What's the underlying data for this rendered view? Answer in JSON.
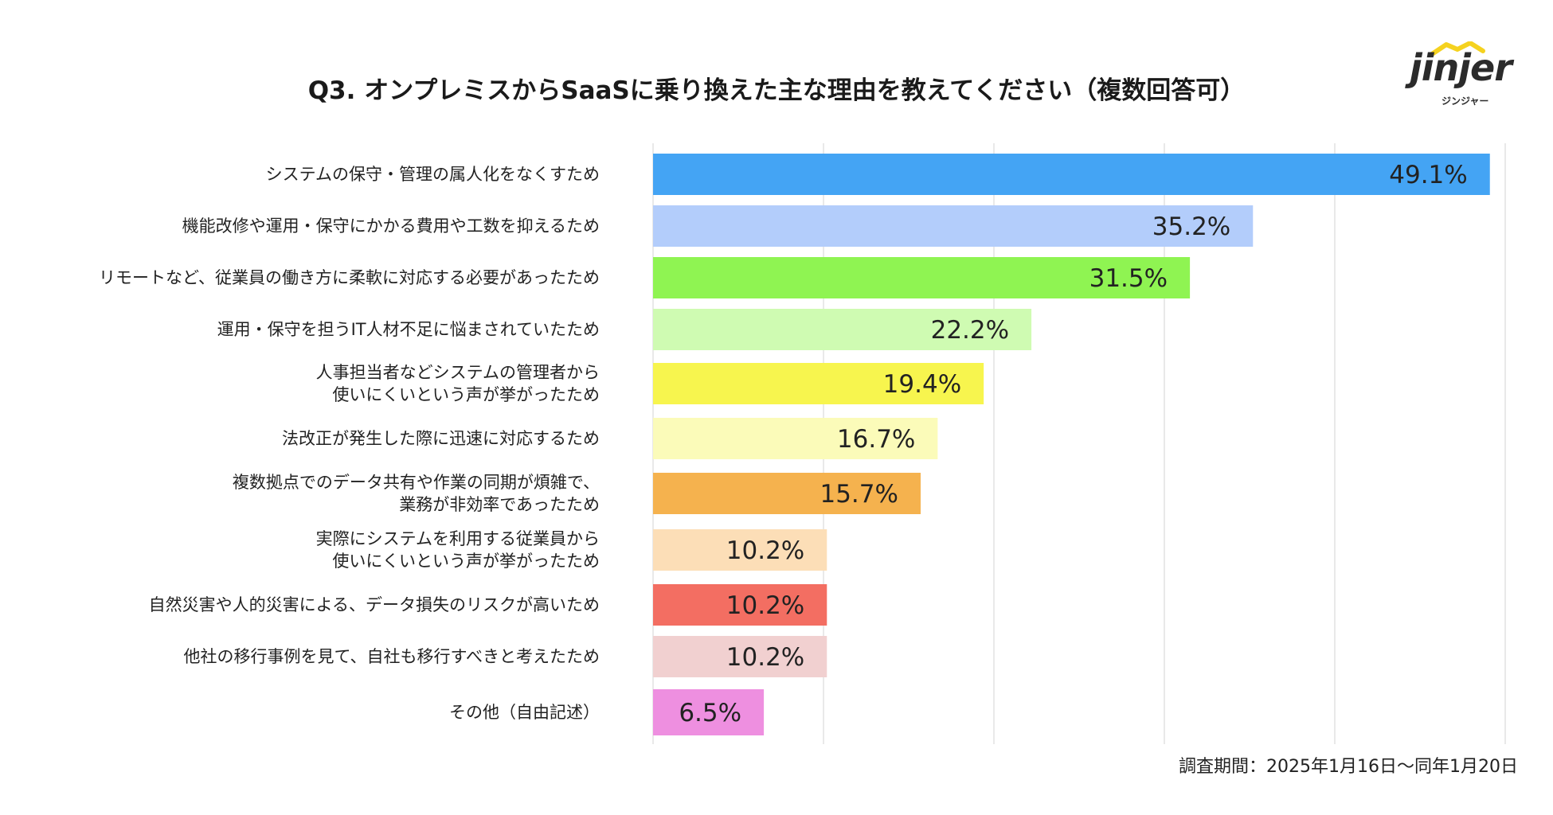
{
  "title": "Q3. オンプレミスからSaaSに乗り換えた主な理由を教えてください（複数回答可）",
  "logo": {
    "word": "jinjer",
    "sub": "ジンジャー"
  },
  "survey_period": "調査期間：2025年1月16日〜同年1月20日",
  "chart_data": {
    "type": "bar",
    "orientation": "horizontal",
    "title": "Q3. オンプレミスからSaaSに乗り換えた主な理由を教えてください（複数回答可）",
    "xlabel": "",
    "ylabel": "",
    "xlim": [
      0,
      50
    ],
    "grid": true,
    "unit": "%",
    "categories": [
      [
        "システムの保守・管理の属人化をなくすため"
      ],
      [
        "機能改修や運用・保守にかかる費用や工数を抑えるため"
      ],
      [
        "リモートなど、従業員の働き方に柔軟に対応する必要があったため"
      ],
      [
        "運用・保守を担うIT人材不足に悩まされていたため"
      ],
      [
        "人事担当者などシステムの管理者から",
        "使いにくいという声が挙がったため"
      ],
      [
        "法改正が発生した際に迅速に対応するため"
      ],
      [
        "複数拠点でのデータ共有や作業の同期が煩雑で、",
        "業務が非効率であったため"
      ],
      [
        "実際にシステムを利用する従業員から",
        "使いにくいという声が挙がったため"
      ],
      [
        "自然災害や人的災害による、データ損失のリスクが高いため"
      ],
      [
        "他社の移行事例を見て、自社も移行すべきと考えたため"
      ],
      [
        "その他（自由記述）"
      ]
    ],
    "values": [
      49.1,
      35.2,
      31.5,
      22.2,
      19.4,
      16.7,
      15.7,
      10.2,
      10.2,
      10.2,
      6.5
    ],
    "data_labels": [
      "49.1%",
      "35.2%",
      "31.5%",
      "22.2%",
      "19.4%",
      "16.7%",
      "15.7%",
      "10.2%",
      "10.2%",
      "10.2%",
      "6.5%"
    ],
    "colors": [
      "#44a4f4",
      "#b3cdfb",
      "#8ff452",
      "#cffbb2",
      "#f7f54e",
      "#fbfbb9",
      "#f5b24e",
      "#fcdeb7",
      "#f36e62",
      "#f1d0d0",
      "#ee8fe0"
    ]
  }
}
